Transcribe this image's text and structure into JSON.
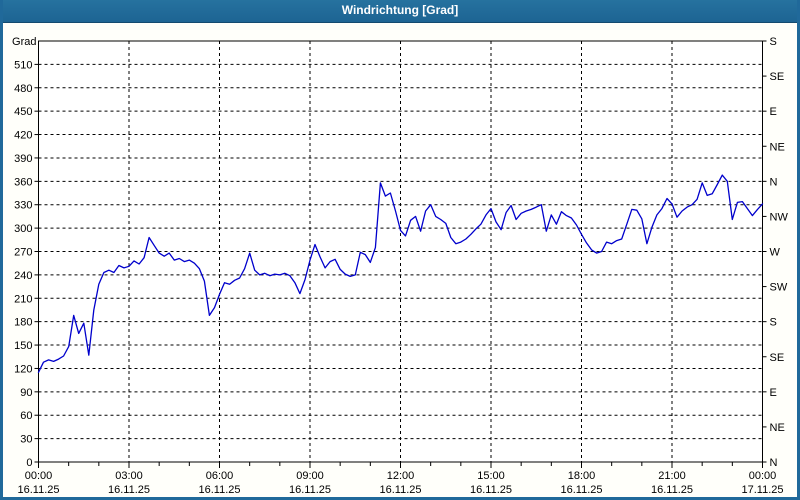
{
  "window": {
    "title": "Windrichtung [Grad]"
  },
  "colors": {
    "titlebar": "#20699a",
    "frame": "#20699a",
    "background": "#fffffa",
    "plot_background": "#ffffff",
    "grid": "#000000",
    "axis": "#000000",
    "line": "#0000cc",
    "text": "#000000"
  },
  "chart_data": {
    "type": "line",
    "title": "Windrichtung [Grad]",
    "y_axis_title": "Grad",
    "ylim": [
      0,
      540
    ],
    "y_left_tick_step": 30,
    "y_left_ticks": [
      510,
      480,
      450,
      420,
      390,
      360,
      330,
      300,
      270,
      240,
      210,
      180,
      150,
      120,
      90,
      60,
      30,
      0
    ],
    "y_right_ticks": [
      {
        "grad": 540,
        "label": "S"
      },
      {
        "grad": 495,
        "label": "SE"
      },
      {
        "grad": 450,
        "label": "E"
      },
      {
        "grad": 405,
        "label": "NE"
      },
      {
        "grad": 360,
        "label": "N"
      },
      {
        "grad": 315,
        "label": "NW"
      },
      {
        "grad": 270,
        "label": "W"
      },
      {
        "grad": 225,
        "label": "SW"
      },
      {
        "grad": 180,
        "label": "S"
      },
      {
        "grad": 135,
        "label": "SE"
      },
      {
        "grad": 90,
        "label": "E"
      },
      {
        "grad": 45,
        "label": "NE"
      },
      {
        "grad": 0,
        "label": "N"
      }
    ],
    "xlim_hours": [
      0,
      24
    ],
    "x_minor_tick_step_hours": 1,
    "x_major_ticks": [
      {
        "hours": 0,
        "time": "00:00",
        "date": "16.11.25"
      },
      {
        "hours": 3,
        "time": "03:00",
        "date": "16.11.25"
      },
      {
        "hours": 6,
        "time": "06:00",
        "date": "16.11.25"
      },
      {
        "hours": 9,
        "time": "09:00",
        "date": "16.11.25"
      },
      {
        "hours": 12,
        "time": "12:00",
        "date": "16.11.25"
      },
      {
        "hours": 15,
        "time": "15:00",
        "date": "16.11.25"
      },
      {
        "hours": 18,
        "time": "18:00",
        "date": "16.11.25"
      },
      {
        "hours": 21,
        "time": "21:00",
        "date": "16.11.25"
      },
      {
        "hours": 24,
        "time": "00:00",
        "date": "17.11.25"
      }
    ],
    "grid": "dashed",
    "legend": "none",
    "series": [
      {
        "name": "Windrichtung",
        "unit": "Grad",
        "color": "#0000cc",
        "points_min_grad": [
          [
            0,
            115
          ],
          [
            10,
            128
          ],
          [
            20,
            131
          ],
          [
            30,
            129
          ],
          [
            40,
            132
          ],
          [
            50,
            136
          ],
          [
            60,
            148
          ],
          [
            70,
            188
          ],
          [
            80,
            165
          ],
          [
            90,
            178
          ],
          [
            100,
            137
          ],
          [
            110,
            195
          ],
          [
            120,
            228
          ],
          [
            130,
            243
          ],
          [
            140,
            246
          ],
          [
            150,
            243
          ],
          [
            160,
            252
          ],
          [
            170,
            249
          ],
          [
            180,
            251
          ],
          [
            190,
            258
          ],
          [
            200,
            254
          ],
          [
            210,
            262
          ],
          [
            220,
            288
          ],
          [
            230,
            278
          ],
          [
            240,
            268
          ],
          [
            250,
            264
          ],
          [
            260,
            268
          ],
          [
            270,
            259
          ],
          [
            280,
            261
          ],
          [
            290,
            257
          ],
          [
            300,
            259
          ],
          [
            310,
            255
          ],
          [
            320,
            248
          ],
          [
            330,
            232
          ],
          [
            340,
            188
          ],
          [
            350,
            198
          ],
          [
            360,
            215
          ],
          [
            370,
            230
          ],
          [
            380,
            228
          ],
          [
            390,
            233
          ],
          [
            400,
            236
          ],
          [
            410,
            248
          ],
          [
            420,
            268
          ],
          [
            430,
            246
          ],
          [
            440,
            240
          ],
          [
            450,
            242
          ],
          [
            460,
            239
          ],
          [
            470,
            241
          ],
          [
            480,
            240
          ],
          [
            490,
            242
          ],
          [
            500,
            239
          ],
          [
            510,
            230
          ],
          [
            520,
            216
          ],
          [
            530,
            234
          ],
          [
            540,
            259
          ],
          [
            550,
            279
          ],
          [
            560,
            263
          ],
          [
            570,
            249
          ],
          [
            580,
            257
          ],
          [
            590,
            260
          ],
          [
            600,
            247
          ],
          [
            610,
            241
          ],
          [
            620,
            238
          ],
          [
            630,
            240
          ],
          [
            640,
            269
          ],
          [
            650,
            266
          ],
          [
            660,
            256
          ],
          [
            670,
            275
          ],
          [
            680,
            358
          ],
          [
            690,
            341
          ],
          [
            700,
            345
          ],
          [
            710,
            322
          ],
          [
            720,
            297
          ],
          [
            730,
            290
          ],
          [
            740,
            310
          ],
          [
            750,
            315
          ],
          [
            760,
            296
          ],
          [
            770,
            322
          ],
          [
            780,
            330
          ],
          [
            790,
            315
          ],
          [
            800,
            311
          ],
          [
            810,
            306
          ],
          [
            820,
            288
          ],
          [
            830,
            280
          ],
          [
            840,
            282
          ],
          [
            850,
            286
          ],
          [
            860,
            292
          ],
          [
            870,
            299
          ],
          [
            880,
            305
          ],
          [
            890,
            317
          ],
          [
            900,
            325
          ],
          [
            910,
            308
          ],
          [
            920,
            298
          ],
          [
            930,
            320
          ],
          [
            940,
            329
          ],
          [
            950,
            311
          ],
          [
            960,
            319
          ],
          [
            970,
            322
          ],
          [
            980,
            324
          ],
          [
            990,
            327
          ],
          [
            1000,
            330
          ],
          [
            1010,
            296
          ],
          [
            1020,
            317
          ],
          [
            1030,
            305
          ],
          [
            1040,
            321
          ],
          [
            1050,
            316
          ],
          [
            1060,
            313
          ],
          [
            1070,
            304
          ],
          [
            1080,
            292
          ],
          [
            1090,
            281
          ],
          [
            1100,
            272
          ],
          [
            1110,
            268
          ],
          [
            1120,
            270
          ],
          [
            1130,
            282
          ],
          [
            1140,
            280
          ],
          [
            1150,
            284
          ],
          [
            1160,
            286
          ],
          [
            1170,
            305
          ],
          [
            1180,
            324
          ],
          [
            1190,
            323
          ],
          [
            1200,
            312
          ],
          [
            1210,
            280
          ],
          [
            1220,
            301
          ],
          [
            1230,
            317
          ],
          [
            1240,
            325
          ],
          [
            1250,
            338
          ],
          [
            1260,
            331
          ],
          [
            1270,
            314
          ],
          [
            1280,
            322
          ],
          [
            1290,
            327
          ],
          [
            1300,
            330
          ],
          [
            1310,
            337
          ],
          [
            1320,
            358
          ],
          [
            1330,
            342
          ],
          [
            1340,
            344
          ],
          [
            1350,
            356
          ],
          [
            1360,
            368
          ],
          [
            1370,
            360
          ],
          [
            1380,
            311
          ],
          [
            1390,
            333
          ],
          [
            1400,
            334
          ],
          [
            1410,
            325
          ],
          [
            1420,
            316
          ],
          [
            1430,
            324
          ],
          [
            1440,
            331
          ]
        ]
      }
    ]
  }
}
